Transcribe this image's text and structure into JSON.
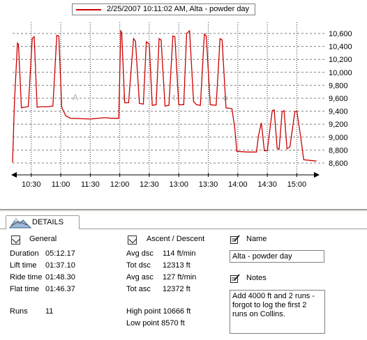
{
  "chart": {
    "legend_label": "2/25/2007 10:11:02 AM, Alta - powder day",
    "watermark": "Alta",
    "series_color": "#cc0000"
  },
  "chart_data": {
    "type": "line",
    "series": [
      {
        "name": "2/25/2007 10:11:02 AM, Alta - powder day",
        "points": [
          [
            "10:11",
            8610
          ],
          [
            "10:13",
            9560
          ],
          [
            "10:16",
            10450
          ],
          [
            "10:17",
            10430
          ],
          [
            "10:20",
            9450
          ],
          [
            "10:22",
            9460
          ],
          [
            "10:27",
            9470
          ],
          [
            "10:31",
            10520
          ],
          [
            "10:33",
            10550
          ],
          [
            "10:36",
            9460
          ],
          [
            "10:40",
            9470
          ],
          [
            "10:47",
            9470
          ],
          [
            "10:52",
            9480
          ],
          [
            "10:56",
            10570
          ],
          [
            "10:58",
            10560
          ],
          [
            "11:01",
            9460
          ],
          [
            "11:05",
            9330
          ],
          [
            "11:10",
            9290
          ],
          [
            "11:30",
            9280
          ],
          [
            "11:45",
            9300
          ],
          [
            "11:52",
            9290
          ],
          [
            "11:59",
            9290
          ],
          [
            "12:01",
            10650
          ],
          [
            "12:02",
            10600
          ],
          [
            "12:05",
            9530
          ],
          [
            "12:09",
            9530
          ],
          [
            "12:14",
            10520
          ],
          [
            "12:16",
            10480
          ],
          [
            "12:20",
            9520
          ],
          [
            "12:24",
            9510
          ],
          [
            "12:27",
            10470
          ],
          [
            "12:30",
            10440
          ],
          [
            "12:33",
            9490
          ],
          [
            "12:37",
            9500
          ],
          [
            "12:40",
            10520
          ],
          [
            "12:42",
            10500
          ],
          [
            "12:46",
            9480
          ],
          [
            "12:50",
            9490
          ],
          [
            "12:54",
            10560
          ],
          [
            "12:56",
            10550
          ],
          [
            "13:00",
            9500
          ],
          [
            "13:05",
            9500
          ],
          [
            "13:08",
            10600
          ],
          [
            "13:11",
            10640
          ],
          [
            "13:15",
            9550
          ],
          [
            "13:18",
            9500
          ],
          [
            "13:22",
            9490
          ],
          [
            "13:26",
            10590
          ],
          [
            "13:28",
            10560
          ],
          [
            "13:32",
            9500
          ],
          [
            "13:38",
            9490
          ],
          [
            "13:42",
            10520
          ],
          [
            "13:44",
            10500
          ],
          [
            "13:48",
            9450
          ],
          [
            "13:54",
            9440
          ],
          [
            "13:57",
            9130
          ],
          [
            "13:59",
            8780
          ],
          [
            "14:10",
            8770
          ],
          [
            "14:19",
            8770
          ],
          [
            "14:21",
            9020
          ],
          [
            "14:24",
            9220
          ],
          [
            "14:27",
            8790
          ],
          [
            "14:30",
            8790
          ],
          [
            "14:35",
            9410
          ],
          [
            "14:37",
            9420
          ],
          [
            "14:40",
            8830
          ],
          [
            "14:42",
            8810
          ],
          [
            "14:45",
            9390
          ],
          [
            "14:47",
            9410
          ],
          [
            "14:50",
            8820
          ],
          [
            "14:53",
            8850
          ],
          [
            "14:58",
            9390
          ],
          [
            "15:00",
            9400
          ],
          [
            "15:04",
            9000
          ],
          [
            "15:07",
            8650
          ],
          [
            "15:14",
            8640
          ],
          [
            "15:20",
            8630
          ]
        ]
      }
    ],
    "x_ticks": [
      "10:30",
      "11:00",
      "11:30",
      "12:00",
      "12:30",
      "13:00",
      "13:30",
      "14:00",
      "14:30",
      "15:00"
    ],
    "y_ticks": [
      "8,600",
      "8,800",
      "9,000",
      "9,200",
      "9,400",
      "9,600",
      "9,800",
      "10,000",
      "10,200",
      "10,400",
      "10,600"
    ],
    "xlim": [
      "10:11",
      "15:21"
    ],
    "ylim": [
      8500,
      10700
    ],
    "grid": true,
    "legend_position": "top-center"
  },
  "details": {
    "tab_label": "DETAILS",
    "general": {
      "title": "General",
      "rows": [
        {
          "label": "Duration",
          "value": "05:12.17"
        },
        {
          "label": "Lift time",
          "value": "01:37.10"
        },
        {
          "label": "Ride time",
          "value": "01:48.30"
        },
        {
          "label": "Flat time",
          "value": "01:46.37"
        }
      ],
      "runs_label": "Runs",
      "runs_value": "11"
    },
    "ascent": {
      "title": "Ascent / Descent",
      "rows": [
        {
          "label": "Avg dsc",
          "value": "114 ft/min"
        },
        {
          "label": "Tot dsc",
          "value": "12313 ft"
        },
        {
          "label": "Avg asc",
          "value": "127 ft/min"
        },
        {
          "label": "Tot asc",
          "value": "12372 ft"
        }
      ],
      "high_point": "High point 10666 ft",
      "low_point": "Low point 8570 ft"
    },
    "name": {
      "title": "Name",
      "value": "Alta - powder day"
    },
    "notes": {
      "title": "Notes",
      "value": "Add 4000 ft and 2 runs - forgot to log the first 2 runs on Collins."
    }
  }
}
